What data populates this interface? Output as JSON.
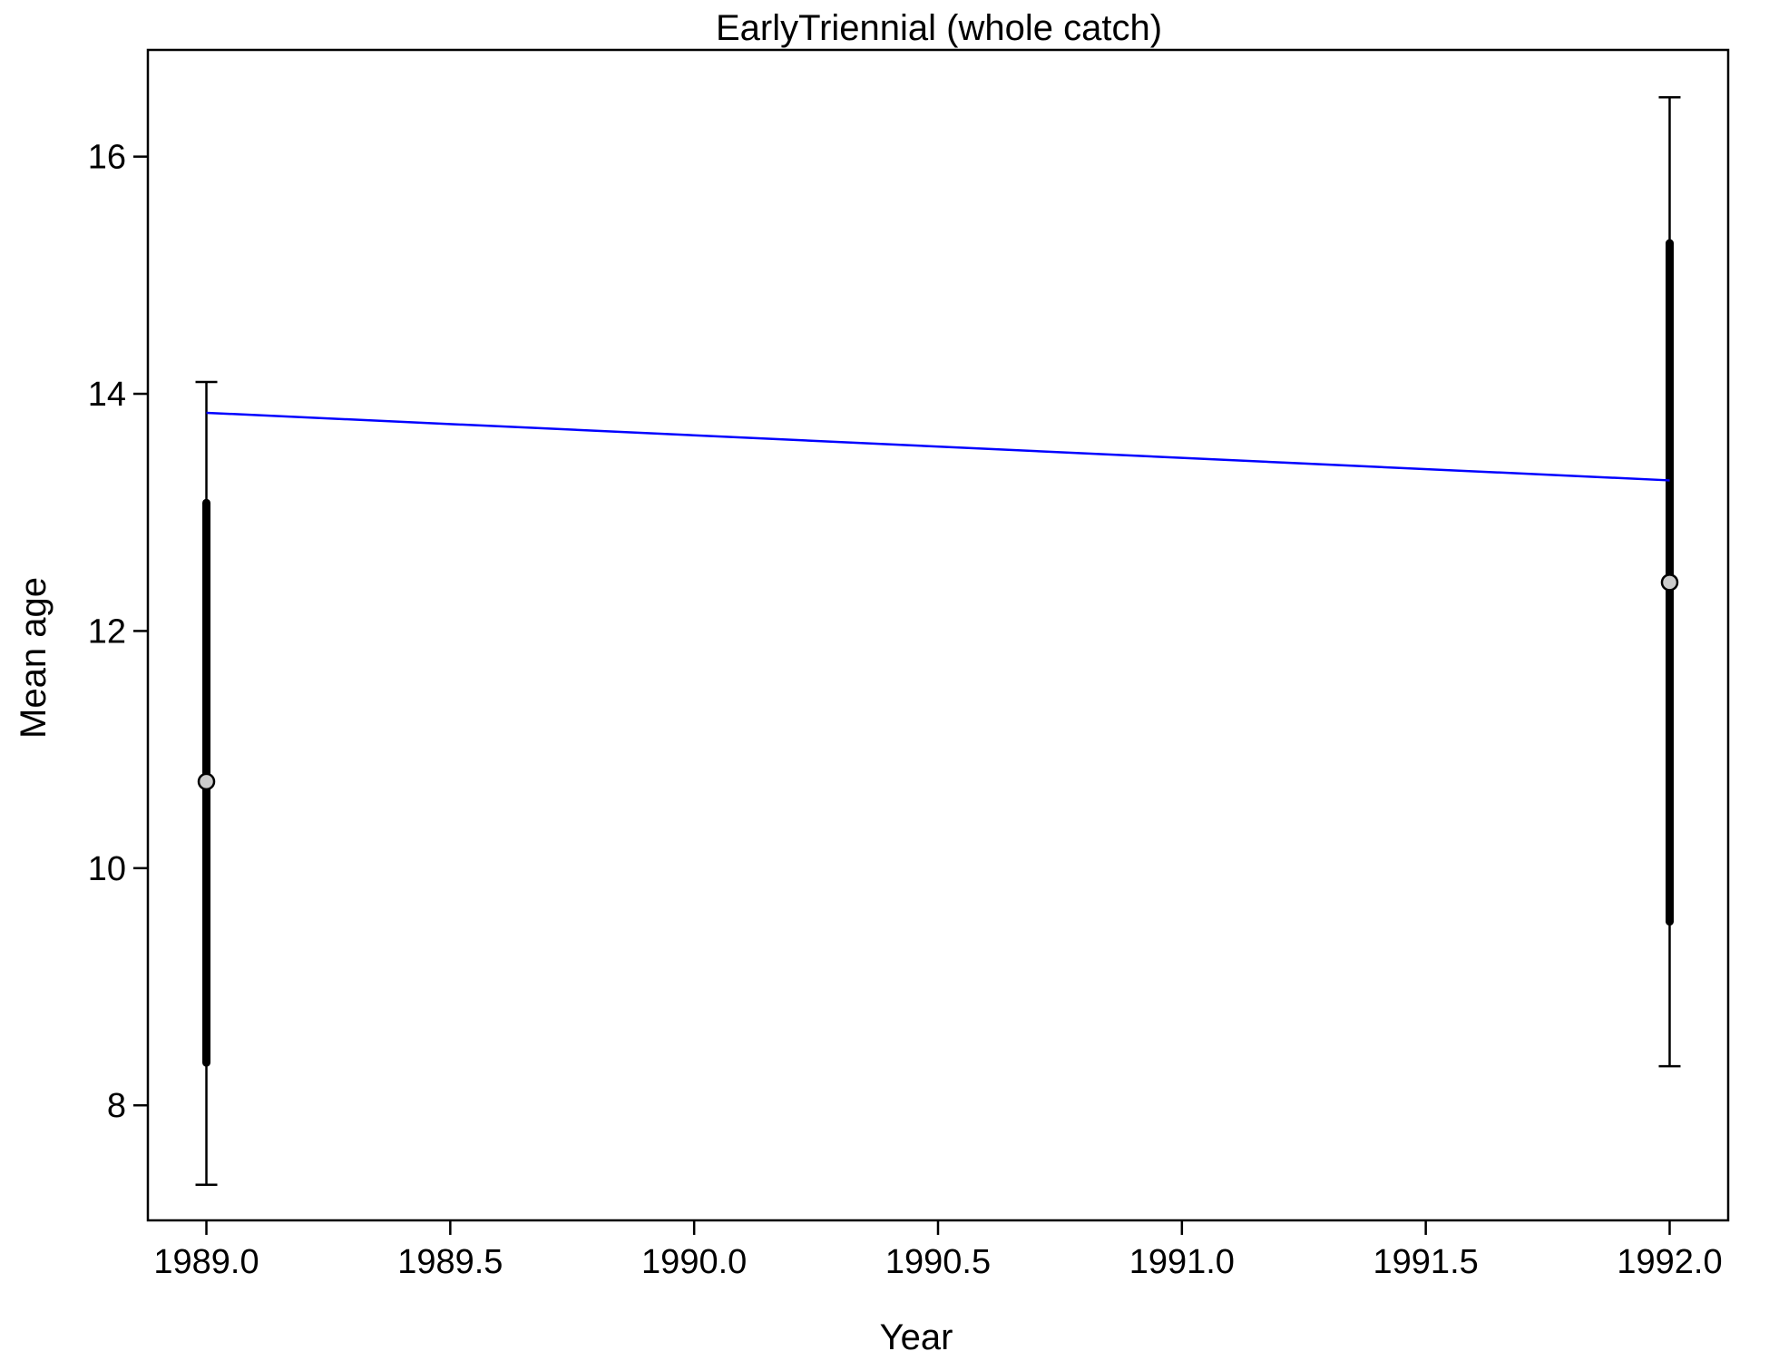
{
  "chart_data": {
    "type": "scatter",
    "title": "EarlyTriennial (whole catch)",
    "xlabel": "Year",
    "ylabel": "Mean age",
    "xlim": [
      1988.88,
      1992.12
    ],
    "ylim": [
      7.03,
      16.9
    ],
    "x_ticks": [
      1989.0,
      1989.5,
      1990.0,
      1990.5,
      1991.0,
      1991.5,
      1992.0
    ],
    "x_tick_labels": [
      "1989.0",
      "1989.5",
      "1990.0",
      "1990.5",
      "1991.0",
      "1991.5",
      "1992.0"
    ],
    "y_ticks": [
      8,
      10,
      12,
      14,
      16
    ],
    "y_tick_labels": [
      "8",
      "10",
      "12",
      "14",
      "16"
    ],
    "series": [
      {
        "kind": "observed",
        "x": [
          1989,
          1992
        ],
        "y": [
          10.73,
          12.41
        ],
        "inner_interval_low": [
          8.36,
          9.55
        ],
        "inner_interval_high": [
          13.08,
          15.27
        ],
        "outer_interval_low": [
          7.33,
          8.33
        ],
        "outer_interval_high": [
          14.1,
          16.5
        ],
        "marker_fill": "#cccccc",
        "color": "#000000"
      },
      {
        "kind": "expected",
        "x": [
          1989,
          1992
        ],
        "y": [
          13.84,
          13.27
        ],
        "color": "#0000ff"
      }
    ],
    "grid": false,
    "legend": "none"
  }
}
